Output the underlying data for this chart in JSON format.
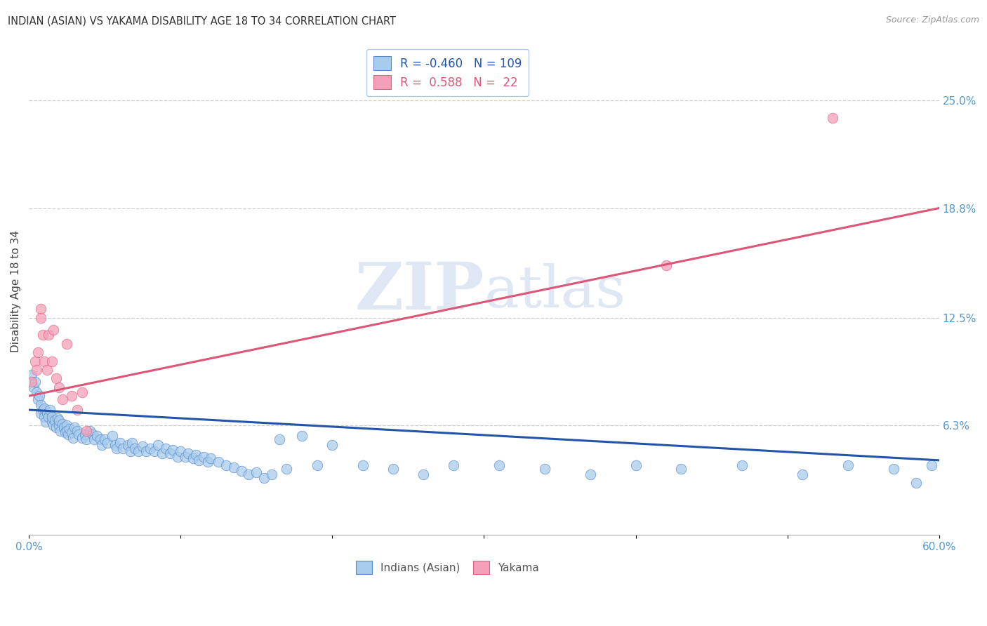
{
  "title": "INDIAN (ASIAN) VS YAKAMA DISABILITY AGE 18 TO 34 CORRELATION CHART",
  "source": "Source: ZipAtlas.com",
  "ylabel": "Disability Age 18 to 34",
  "xlim": [
    0.0,
    0.6
  ],
  "ylim": [
    0.0,
    0.28
  ],
  "xticks": [
    0.0,
    0.1,
    0.2,
    0.3,
    0.4,
    0.5,
    0.6
  ],
  "xticklabels": [
    "0.0%",
    "",
    "",
    "",
    "",
    "",
    "60.0%"
  ],
  "ytick_labels_right": [
    "25.0%",
    "18.8%",
    "12.5%",
    "6.3%"
  ],
  "ytick_values_right": [
    0.25,
    0.188,
    0.125,
    0.063
  ],
  "legend_blue_R": "-0.460",
  "legend_blue_N": "109",
  "legend_pink_R": "0.588",
  "legend_pink_N": "22",
  "blue_fill": "#A8CCEC",
  "pink_fill": "#F4A0B8",
  "blue_edge": "#5588CC",
  "pink_edge": "#E06080",
  "blue_line_color": "#2255AA",
  "pink_line_color": "#DD5577",
  "watermark_color": "#C8D8EC",
  "grid_color": "#CCCCCC",
  "background_color": "#FFFFFF",
  "blue_line_x0": 0.0,
  "blue_line_y0": 0.072,
  "blue_line_x1": 0.6,
  "blue_line_y1": 0.043,
  "pink_line_x0": 0.0,
  "pink_line_y0": 0.08,
  "pink_line_x1": 0.6,
  "pink_line_y1": 0.188,
  "blue_scatter_x": [
    0.002,
    0.003,
    0.004,
    0.005,
    0.006,
    0.007,
    0.008,
    0.008,
    0.009,
    0.01,
    0.01,
    0.011,
    0.012,
    0.013,
    0.014,
    0.015,
    0.015,
    0.016,
    0.017,
    0.018,
    0.019,
    0.02,
    0.02,
    0.021,
    0.022,
    0.023,
    0.024,
    0.025,
    0.025,
    0.026,
    0.027,
    0.028,
    0.029,
    0.03,
    0.032,
    0.033,
    0.035,
    0.037,
    0.038,
    0.04,
    0.042,
    0.043,
    0.045,
    0.047,
    0.048,
    0.05,
    0.052,
    0.055,
    0.057,
    0.058,
    0.06,
    0.062,
    0.065,
    0.067,
    0.068,
    0.07,
    0.072,
    0.075,
    0.077,
    0.08,
    0.083,
    0.085,
    0.088,
    0.09,
    0.093,
    0.095,
    0.098,
    0.1,
    0.103,
    0.105,
    0.108,
    0.11,
    0.112,
    0.115,
    0.118,
    0.12,
    0.125,
    0.13,
    0.135,
    0.14,
    0.145,
    0.15,
    0.155,
    0.16,
    0.165,
    0.17,
    0.18,
    0.19,
    0.2,
    0.22,
    0.24,
    0.26,
    0.28,
    0.31,
    0.34,
    0.37,
    0.4,
    0.43,
    0.47,
    0.51,
    0.54,
    0.57,
    0.585,
    0.595
  ],
  "blue_scatter_y": [
    0.092,
    0.085,
    0.088,
    0.082,
    0.078,
    0.08,
    0.075,
    0.07,
    0.072,
    0.068,
    0.073,
    0.065,
    0.07,
    0.068,
    0.072,
    0.065,
    0.068,
    0.063,
    0.066,
    0.062,
    0.067,
    0.063,
    0.066,
    0.06,
    0.064,
    0.062,
    0.059,
    0.063,
    0.06,
    0.058,
    0.061,
    0.059,
    0.056,
    0.062,
    0.06,
    0.058,
    0.056,
    0.058,
    0.055,
    0.06,
    0.058,
    0.055,
    0.057,
    0.055,
    0.052,
    0.055,
    0.053,
    0.057,
    0.052,
    0.05,
    0.053,
    0.05,
    0.052,
    0.048,
    0.053,
    0.05,
    0.048,
    0.051,
    0.048,
    0.05,
    0.048,
    0.052,
    0.047,
    0.05,
    0.047,
    0.049,
    0.045,
    0.048,
    0.045,
    0.047,
    0.044,
    0.046,
    0.043,
    0.045,
    0.042,
    0.044,
    0.042,
    0.04,
    0.039,
    0.037,
    0.035,
    0.036,
    0.033,
    0.035,
    0.055,
    0.038,
    0.057,
    0.04,
    0.052,
    0.04,
    0.038,
    0.035,
    0.04,
    0.04,
    0.038,
    0.035,
    0.04,
    0.038,
    0.04,
    0.035,
    0.04,
    0.038,
    0.03,
    0.04
  ],
  "pink_scatter_x": [
    0.002,
    0.004,
    0.005,
    0.006,
    0.008,
    0.008,
    0.009,
    0.01,
    0.012,
    0.013,
    0.015,
    0.016,
    0.018,
    0.02,
    0.022,
    0.025,
    0.028,
    0.032,
    0.035,
    0.038,
    0.42,
    0.53
  ],
  "pink_scatter_y": [
    0.088,
    0.1,
    0.095,
    0.105,
    0.13,
    0.125,
    0.115,
    0.1,
    0.095,
    0.115,
    0.1,
    0.118,
    0.09,
    0.085,
    0.078,
    0.11,
    0.08,
    0.072,
    0.082,
    0.06,
    0.155,
    0.24
  ]
}
